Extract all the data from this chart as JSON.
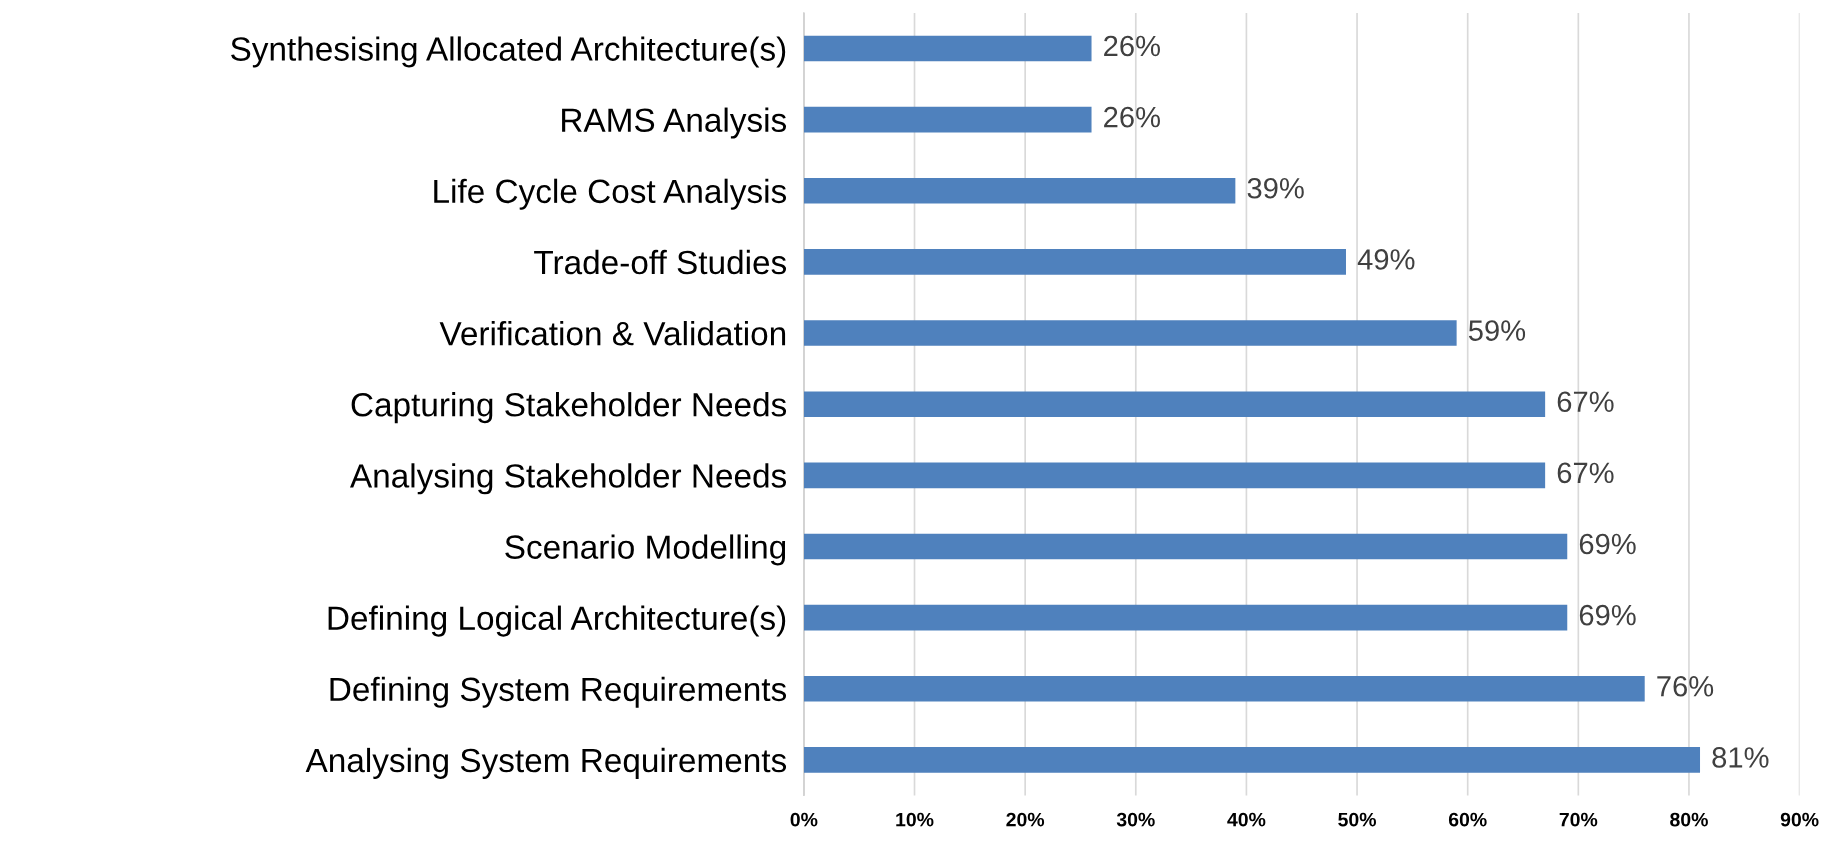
{
  "chart_data": {
    "type": "bar",
    "orientation": "horizontal",
    "categories": [
      "Synthesising Allocated Architecture(s)",
      "RAMS Analysis",
      "Life Cycle Cost Analysis",
      "Trade-off Studies",
      "Verification & Validation",
      "Capturing Stakeholder Needs",
      "Analysing Stakeholder Needs",
      "Scenario Modelling",
      "Defining Logical Architecture(s)",
      "Defining System Requirements",
      "Analysing System Requirements"
    ],
    "values": [
      26,
      26,
      39,
      49,
      59,
      67,
      67,
      69,
      69,
      76,
      81
    ],
    "value_labels": [
      "26%",
      "26%",
      "39%",
      "49%",
      "59%",
      "67%",
      "67%",
      "69%",
      "69%",
      "76%",
      "81%"
    ],
    "color": "#4f81bd",
    "xlim": [
      0,
      90
    ],
    "xticks": [
      {
        "value": 0,
        "label": "0%"
      },
      {
        "value": 10,
        "label": "10%"
      },
      {
        "value": 20,
        "label": "20%"
      },
      {
        "value": 30,
        "label": "30%"
      },
      {
        "value": 40,
        "label": "40%"
      },
      {
        "value": 50,
        "label": "50%"
      },
      {
        "value": 60,
        "label": "60%"
      },
      {
        "value": 70,
        "label": "70%"
      },
      {
        "value": 80,
        "label": "80%"
      },
      {
        "value": 90,
        "label": "90%"
      }
    ],
    "grid": "x",
    "legend": false
  }
}
